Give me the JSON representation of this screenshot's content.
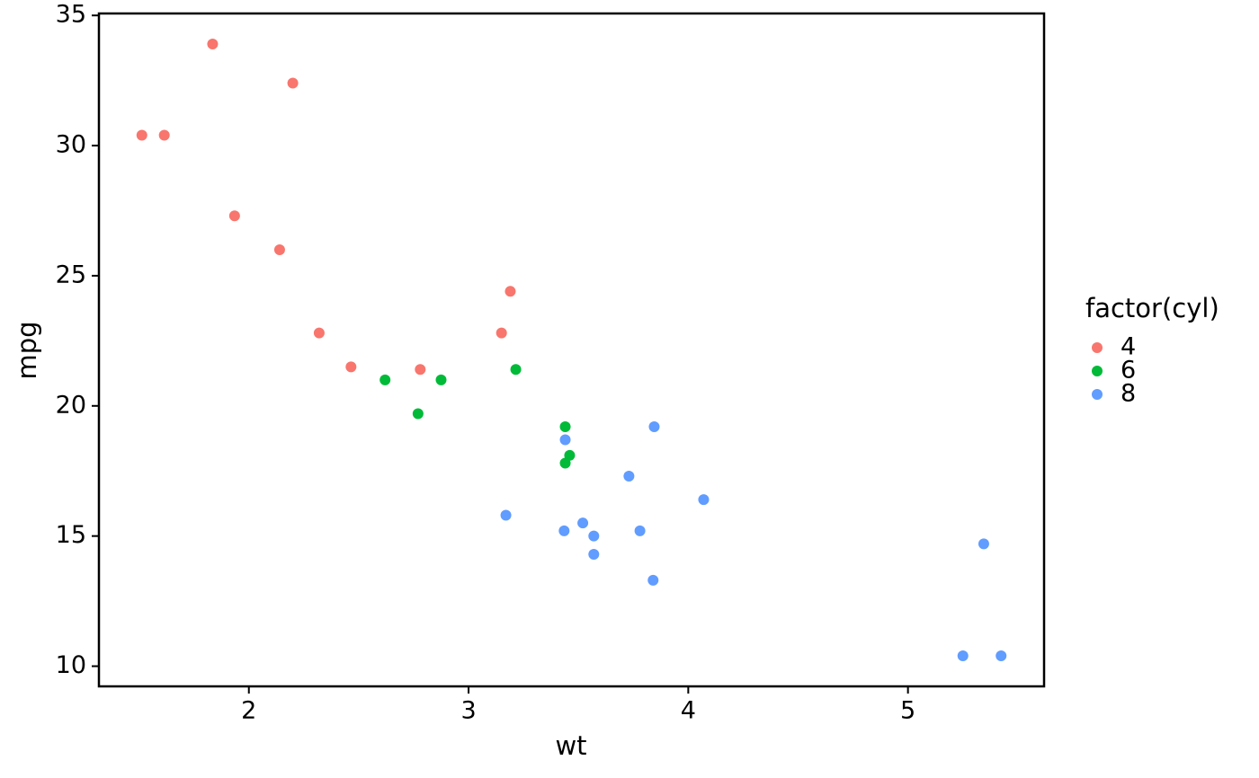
{
  "chart_data": {
    "type": "scatter",
    "x_label": "wt",
    "y_label": "mpg",
    "legend_title": "factor(cyl)",
    "legend_position": "right",
    "grid": false,
    "xlim": [
      1.3175,
      5.6195
    ],
    "ylim": [
      9.225,
      35.075
    ],
    "xticks": [
      2,
      3,
      4,
      5
    ],
    "yticks": [
      10,
      15,
      20,
      25,
      30,
      35
    ],
    "series": [
      {
        "name": "4",
        "color": "#f8766d",
        "x": [
          2.32,
          3.19,
          3.15,
          2.2,
          1.615,
          1.835,
          2.465,
          1.935,
          2.14,
          1.513,
          2.78
        ],
        "values": [
          22.8,
          24.4,
          22.8,
          32.4,
          30.4,
          33.9,
          21.5,
          27.3,
          26.0,
          30.4,
          21.4
        ]
      },
      {
        "name": "6",
        "color": "#00ba38",
        "x": [
          2.62,
          2.875,
          3.215,
          3.46,
          3.44,
          3.44,
          2.77
        ],
        "values": [
          21.0,
          21.0,
          21.4,
          18.1,
          19.2,
          17.8,
          19.7
        ]
      },
      {
        "name": "8",
        "color": "#619cff",
        "x": [
          3.44,
          3.57,
          4.07,
          3.73,
          3.78,
          5.25,
          5.424,
          5.345,
          3.52,
          3.435,
          3.84,
          3.845,
          3.17,
          3.57
        ],
        "values": [
          18.7,
          14.3,
          16.4,
          17.3,
          15.2,
          10.4,
          10.4,
          14.7,
          15.5,
          15.2,
          13.3,
          19.2,
          15.8,
          15.0
        ]
      }
    ]
  }
}
